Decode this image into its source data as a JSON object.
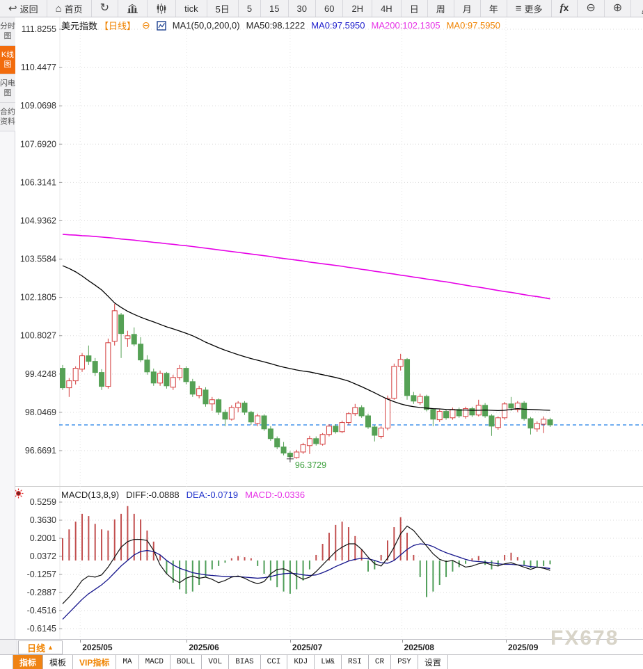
{
  "colors": {
    "accent_orange": "#f08300",
    "up_red": "#d43c3c",
    "down_green": "#55a155",
    "ma50_line": "#000000",
    "ma200_line": "#e600e6",
    "dea_line": "#16168c",
    "diff_line": "#111111",
    "last_price_line": "#1a7ce8",
    "low_label_green": "#3da03d",
    "grid": "#d9d9d9",
    "blue_text": "#2020cc",
    "magenta_text": "#e632e6"
  },
  "toolbar": {
    "items": [
      {
        "name": "back-button",
        "icon": "back",
        "label": "返回"
      },
      {
        "name": "home-button",
        "icon": "home",
        "label": "首页"
      },
      {
        "name": "refresh-button",
        "icon": "refresh",
        "label": ""
      },
      {
        "name": "line-chart-button",
        "icon": "bars",
        "label": ""
      },
      {
        "name": "candlestick-chart-button",
        "icon": "kline",
        "label": ""
      },
      {
        "name": "tick-chart-button",
        "icon": "",
        "label": "tick"
      },
      {
        "name": "period-5day-button",
        "icon": "",
        "label": "5日"
      },
      {
        "name": "period-5min-button",
        "icon": "",
        "label": "5"
      },
      {
        "name": "period-15min-button",
        "icon": "",
        "label": "15"
      },
      {
        "name": "period-30min-button",
        "icon": "",
        "label": "30"
      },
      {
        "name": "period-60min-button",
        "icon": "",
        "label": "60"
      },
      {
        "name": "period-2h-button",
        "icon": "",
        "label": "2H"
      },
      {
        "name": "period-4h-button",
        "icon": "",
        "label": "4H"
      },
      {
        "name": "period-day-button",
        "icon": "",
        "label": "日"
      },
      {
        "name": "period-week-button",
        "icon": "",
        "label": "周"
      },
      {
        "name": "period-month-button",
        "icon": "",
        "label": "月"
      },
      {
        "name": "period-year-button",
        "icon": "",
        "label": "年"
      },
      {
        "name": "more-menu-button",
        "icon": "menu",
        "label": "更多"
      },
      {
        "name": "indicator-fx-button",
        "icon": "fx",
        "label": ""
      },
      {
        "name": "zoom-out-button",
        "icon": "zoomout",
        "label": ""
      },
      {
        "name": "zoom-in-button",
        "icon": "zoomin",
        "label": ""
      },
      {
        "name": "draw-tool-button",
        "icon": "pencil",
        "label": ""
      },
      {
        "name": "draw-tool-2-button",
        "icon": "pencil",
        "label": ""
      }
    ]
  },
  "sidebar": {
    "items": [
      {
        "name": "sidebar-item-time-chart",
        "label": "分时图",
        "active": false
      },
      {
        "name": "sidebar-item-kline-chart",
        "label": "K线图",
        "active": true
      },
      {
        "name": "sidebar-item-lightning-chart",
        "label": "闪电图",
        "active": false
      },
      {
        "name": "sidebar-item-contract-info",
        "label": "合约资料",
        "active": false
      }
    ]
  },
  "chart_header": {
    "symbol": "美元指数",
    "period_tag": "【日线】",
    "collapse_icon": "⊖",
    "ma_settings": "MA1(50,0,200,0)",
    "ma50": "MA50:98.1222",
    "ma0_blue": "MA0:97.5950",
    "ma200": "MA200:102.1305",
    "ma0_orange": "MA0:97.5950"
  },
  "macd_header": {
    "title": "MACD(13,8,9)",
    "diff": "DIFF:-0.0888",
    "dea": "DEA:-0.0719",
    "macd": "MACD:-0.0336"
  },
  "bottom": {
    "period_label": "日线",
    "period_arrow": "▲",
    "watermark": "FX678",
    "tabs": [
      {
        "name": "tab-indicator",
        "label": "指标",
        "active": true,
        "vip": false,
        "mono": false
      },
      {
        "name": "tab-template",
        "label": "模板",
        "active": false,
        "vip": false,
        "mono": false
      },
      {
        "name": "tab-vip-indicator",
        "label": "VIP指标",
        "active": false,
        "vip": true,
        "mono": false
      },
      {
        "name": "tab-ma",
        "label": "MA",
        "active": false,
        "vip": false,
        "mono": true
      },
      {
        "name": "tab-macd",
        "label": "MACD",
        "active": false,
        "vip": false,
        "mono": true
      },
      {
        "name": "tab-boll",
        "label": "BOLL",
        "active": false,
        "vip": false,
        "mono": true
      },
      {
        "name": "tab-vol",
        "label": "VOL",
        "active": false,
        "vip": false,
        "mono": true
      },
      {
        "name": "tab-bias",
        "label": "BIAS",
        "active": false,
        "vip": false,
        "mono": true
      },
      {
        "name": "tab-cci",
        "label": "CCI",
        "active": false,
        "vip": false,
        "mono": true
      },
      {
        "name": "tab-kdj",
        "label": "KDJ",
        "active": false,
        "vip": false,
        "mono": true
      },
      {
        "name": "tab-lw",
        "label": "LW&",
        "active": false,
        "vip": false,
        "mono": true
      },
      {
        "name": "tab-rsi",
        "label": "RSI",
        "active": false,
        "vip": false,
        "mono": true
      },
      {
        "name": "tab-cr",
        "label": "CR",
        "active": false,
        "vip": false,
        "mono": true
      },
      {
        "name": "tab-psy",
        "label": "PSY",
        "active": false,
        "vip": false,
        "mono": true
      },
      {
        "name": "tab-settings",
        "label": "设置",
        "active": false,
        "vip": false,
        "mono": false
      }
    ]
  },
  "chart_data": {
    "type": "candlestick",
    "symbol": "美元指数",
    "period": "日线",
    "price_pane": {
      "axis_labels": [
        "111.8255",
        "110.4477",
        "109.0698",
        "107.6920",
        "106.3141",
        "104.9362",
        "103.5584",
        "102.1805",
        "100.8027",
        "99.4248",
        "98.0469",
        "96.6691"
      ],
      "axis_max": 111.8255,
      "axis_min": 96.6691,
      "last_price": 97.595,
      "low_marker": {
        "index": 35,
        "price": 96.3729,
        "label": "96.3729"
      },
      "candles": [
        [
          99.63,
          99.75,
          98.85,
          98.93
        ],
        [
          98.93,
          99.28,
          98.6,
          99.18
        ],
        [
          99.18,
          99.7,
          99.05,
          99.63
        ],
        [
          99.6,
          100.18,
          99.5,
          100.08
        ],
        [
          100.08,
          100.45,
          99.75,
          99.88
        ],
        [
          99.88,
          100.0,
          99.35,
          99.48
        ],
        [
          99.48,
          99.6,
          98.85,
          98.98
        ],
        [
          98.98,
          100.7,
          98.9,
          100.55
        ],
        [
          100.6,
          101.95,
          100.45,
          101.7
        ],
        [
          101.55,
          101.62,
          100.0,
          100.88
        ],
        [
          100.7,
          100.98,
          100.4,
          100.8
        ],
        [
          100.85,
          101.1,
          100.42,
          100.5
        ],
        [
          100.5,
          100.75,
          99.85,
          99.93
        ],
        [
          99.93,
          100.1,
          99.4,
          99.5
        ],
        [
          99.5,
          99.62,
          99.0,
          99.1
        ],
        [
          99.1,
          99.55,
          99.0,
          99.45
        ],
        [
          99.45,
          99.5,
          98.9,
          99.0
        ],
        [
          98.95,
          99.4,
          98.85,
          99.3
        ],
        [
          99.3,
          99.75,
          99.2,
          99.63
        ],
        [
          99.63,
          99.7,
          99.05,
          99.15
        ],
        [
          99.15,
          99.25,
          98.6,
          98.7
        ],
        [
          98.65,
          99.0,
          98.55,
          98.9
        ],
        [
          98.85,
          98.95,
          98.25,
          98.35
        ],
        [
          98.35,
          98.6,
          98.1,
          98.5
        ],
        [
          98.5,
          98.55,
          97.95,
          98.05
        ],
        [
          98.05,
          98.15,
          97.55,
          97.8
        ],
        [
          97.8,
          98.3,
          97.75,
          98.22
        ],
        [
          98.22,
          98.45,
          98.05,
          98.38
        ],
        [
          98.38,
          98.45,
          97.95,
          98.05
        ],
        [
          98.05,
          98.1,
          97.6,
          97.7
        ],
        [
          97.65,
          98.0,
          97.55,
          97.92
        ],
        [
          97.92,
          97.98,
          97.38,
          97.45
        ],
        [
          97.45,
          97.55,
          97.02,
          97.1
        ],
        [
          97.1,
          97.18,
          96.72,
          96.8
        ],
        [
          96.8,
          96.98,
          96.5,
          96.58
        ],
        [
          96.58,
          96.65,
          96.3729,
          96.45
        ],
        [
          96.42,
          96.7,
          96.38,
          96.62
        ],
        [
          96.62,
          96.95,
          96.55,
          96.88
        ],
        [
          96.85,
          97.2,
          96.55,
          97.1
        ],
        [
          97.1,
          97.18,
          96.85,
          96.92
        ],
        [
          96.9,
          97.3,
          96.85,
          97.25
        ],
        [
          97.25,
          97.62,
          97.18,
          97.55
        ],
        [
          97.55,
          97.62,
          97.28,
          97.35
        ],
        [
          97.35,
          97.75,
          97.3,
          97.68
        ],
        [
          97.68,
          98.05,
          97.6,
          98.0
        ],
        [
          98.0,
          98.35,
          97.92,
          98.22
        ],
        [
          98.22,
          98.3,
          97.85,
          97.92
        ],
        [
          97.92,
          98.0,
          97.45,
          97.52
        ],
        [
          97.52,
          97.58,
          97.0,
          97.22
        ],
        [
          97.18,
          97.55,
          97.1,
          97.48
        ],
        [
          97.48,
          98.65,
          97.4,
          98.55
        ],
        [
          98.55,
          99.8,
          98.5,
          99.7
        ],
        [
          99.7,
          100.15,
          99.55,
          99.95
        ],
        [
          99.95,
          100.0,
          98.5,
          98.65
        ],
        [
          98.65,
          98.78,
          98.35,
          98.45
        ],
        [
          98.4,
          98.72,
          98.32,
          98.62
        ],
        [
          98.62,
          98.68,
          98.08,
          98.15
        ],
        [
          98.15,
          98.2,
          97.55,
          97.8
        ],
        [
          97.78,
          98.15,
          97.7,
          98.08
        ],
        [
          98.08,
          98.15,
          97.78,
          97.85
        ],
        [
          97.85,
          98.22,
          97.78,
          98.15
        ],
        [
          98.15,
          98.22,
          97.85,
          97.92
        ],
        [
          97.9,
          98.25,
          97.82,
          98.18
        ],
        [
          98.18,
          98.25,
          97.88,
          97.95
        ],
        [
          97.95,
          98.5,
          97.9,
          98.3
        ],
        [
          98.3,
          98.38,
          97.85,
          97.92
        ],
        [
          97.92,
          97.98,
          97.2,
          97.55
        ],
        [
          97.5,
          97.9,
          97.42,
          97.85
        ],
        [
          97.85,
          98.42,
          97.78,
          98.35
        ],
        [
          98.35,
          98.6,
          98.1,
          98.2
        ],
        [
          98.15,
          98.45,
          98.05,
          98.38
        ],
        [
          98.38,
          98.45,
          97.75,
          97.82
        ],
        [
          97.82,
          97.88,
          97.25,
          97.48
        ],
        [
          97.45,
          97.72,
          97.35,
          97.65
        ],
        [
          97.62,
          97.9,
          97.3,
          97.8
        ],
        [
          97.78,
          97.85,
          97.52,
          97.595
        ]
      ],
      "ma50": [
        103.32,
        103.22,
        103.1,
        102.95,
        102.78,
        102.62,
        102.45,
        102.22,
        101.98,
        101.82,
        101.68,
        101.57,
        101.47,
        101.38,
        101.3,
        101.21,
        101.12,
        101.05,
        100.97,
        100.89,
        100.8,
        100.69,
        100.57,
        100.47,
        100.37,
        100.28,
        100.2,
        100.12,
        100.05,
        99.98,
        99.92,
        99.86,
        99.8,
        99.73,
        99.67,
        99.62,
        99.57,
        99.53,
        99.5,
        99.45,
        99.4,
        99.35,
        99.3,
        99.24,
        99.17,
        99.07,
        98.97,
        98.86,
        98.75,
        98.63,
        98.52,
        98.43,
        98.35,
        98.29,
        98.25,
        98.22,
        98.2,
        98.18,
        98.17,
        98.15,
        98.14,
        98.13,
        98.13,
        98.12,
        98.12,
        98.13,
        98.12,
        98.11,
        98.12,
        98.15,
        98.18,
        98.16,
        98.15,
        98.14,
        98.13,
        98.12
      ],
      "ma200": [
        104.45,
        104.43,
        104.42,
        104.4,
        104.39,
        104.37,
        104.35,
        104.33,
        104.31,
        104.28,
        104.26,
        104.24,
        104.21,
        104.19,
        104.16,
        104.14,
        104.11,
        104.09,
        104.06,
        104.04,
        104.01,
        103.98,
        103.95,
        103.92,
        103.89,
        103.86,
        103.83,
        103.8,
        103.77,
        103.74,
        103.71,
        103.68,
        103.65,
        103.61,
        103.58,
        103.55,
        103.52,
        103.49,
        103.45,
        103.42,
        103.39,
        103.36,
        103.33,
        103.3,
        103.26,
        103.23,
        103.19,
        103.16,
        103.12,
        103.09,
        103.05,
        103.02,
        102.98,
        102.95,
        102.91,
        102.88,
        102.84,
        102.81,
        102.77,
        102.74,
        102.7,
        102.66,
        102.62,
        102.58,
        102.55,
        102.51,
        102.47,
        102.43,
        102.39,
        102.36,
        102.32,
        102.28,
        102.24,
        102.21,
        102.17,
        102.13
      ]
    },
    "macd_pane": {
      "params": "MACD(13,8,9)",
      "diff_last": -0.0888,
      "dea_last": -0.0719,
      "macd_last": -0.0336,
      "axis_labels": [
        "0.5259",
        "0.3630",
        "0.2001",
        "0.0372",
        "-0.1257",
        "-0.2887",
        "-0.4516",
        "-0.6145"
      ],
      "axis_max": 0.5259,
      "axis_min": -0.6145,
      "hist": [
        0.2,
        0.28,
        0.35,
        0.42,
        0.4,
        0.33,
        0.28,
        0.27,
        0.37,
        0.42,
        0.49,
        0.42,
        0.37,
        0.27,
        0.17,
        0.05,
        -0.12,
        -0.2,
        -0.26,
        -0.3,
        -0.28,
        -0.22,
        -0.15,
        -0.08,
        -0.05,
        -0.02,
        0.02,
        0.04,
        0.03,
        0.02,
        -0.05,
        -0.12,
        -0.18,
        -0.24,
        -0.28,
        -0.3,
        -0.26,
        -0.18,
        -0.08,
        0.05,
        0.15,
        0.25,
        0.32,
        0.35,
        0.3,
        0.22,
        0.1,
        -0.1,
        -0.08,
        0.05,
        0.18,
        0.3,
        0.39,
        0.25,
        0.05,
        -0.15,
        -0.33,
        -0.28,
        -0.22,
        -0.15,
        -0.1,
        -0.06,
        -0.03,
        0.02,
        0.04,
        -0.04,
        -0.08,
        -0.05,
        0.05,
        0.07,
        0.03,
        -0.04,
        -0.07,
        -0.06,
        -0.05,
        -0.034
      ],
      "diff": [
        -0.39,
        -0.33,
        -0.26,
        -0.18,
        -0.14,
        -0.15,
        -0.13,
        -0.06,
        0.03,
        0.12,
        0.17,
        0.19,
        0.19,
        0.18,
        0.09,
        -0.04,
        -0.12,
        -0.17,
        -0.2,
        -0.16,
        -0.14,
        -0.16,
        -0.15,
        -0.17,
        -0.2,
        -0.18,
        -0.15,
        -0.14,
        -0.16,
        -0.19,
        -0.21,
        -0.19,
        -0.12,
        -0.08,
        -0.075,
        -0.1,
        -0.14,
        -0.17,
        -0.15,
        -0.1,
        -0.04,
        0.02,
        0.08,
        0.12,
        0.15,
        0.15,
        0.1,
        0.03,
        -0.03,
        -0.05,
        0.02,
        0.12,
        0.24,
        0.31,
        0.27,
        0.2,
        0.13,
        0.06,
        0.01,
        -0.01,
        0.0,
        -0.03,
        -0.06,
        -0.05,
        -0.03,
        -0.02,
        -0.04,
        -0.05,
        -0.03,
        -0.02,
        -0.04,
        -0.06,
        -0.08,
        -0.06,
        -0.07,
        -0.089
      ],
      "dea": [
        -0.53,
        -0.47,
        -0.41,
        -0.35,
        -0.3,
        -0.26,
        -0.22,
        -0.17,
        -0.11,
        -0.05,
        0.0,
        0.05,
        0.08,
        0.09,
        0.08,
        0.05,
        0.0,
        -0.04,
        -0.07,
        -0.09,
        -0.11,
        -0.12,
        -0.13,
        -0.135,
        -0.14,
        -0.145,
        -0.145,
        -0.145,
        -0.15,
        -0.155,
        -0.16,
        -0.155,
        -0.145,
        -0.13,
        -0.12,
        -0.115,
        -0.12,
        -0.13,
        -0.135,
        -0.13,
        -0.11,
        -0.085,
        -0.055,
        -0.03,
        -0.005,
        0.01,
        0.02,
        0.015,
        0.0,
        -0.02,
        -0.025,
        0.0,
        0.05,
        0.1,
        0.135,
        0.15,
        0.145,
        0.125,
        0.095,
        0.07,
        0.05,
        0.03,
        0.01,
        -0.005,
        -0.01,
        -0.015,
        -0.02,
        -0.03,
        -0.035,
        -0.035,
        -0.04,
        -0.045,
        -0.055,
        -0.06,
        -0.065,
        -0.072
      ]
    },
    "x_axis": {
      "labels": [
        "2025/05",
        "2025/06",
        "2025/07",
        "2025/08",
        "2025/09"
      ],
      "label_indices": [
        2.7,
        19.1,
        35,
        52.2,
        68.2
      ]
    }
  }
}
